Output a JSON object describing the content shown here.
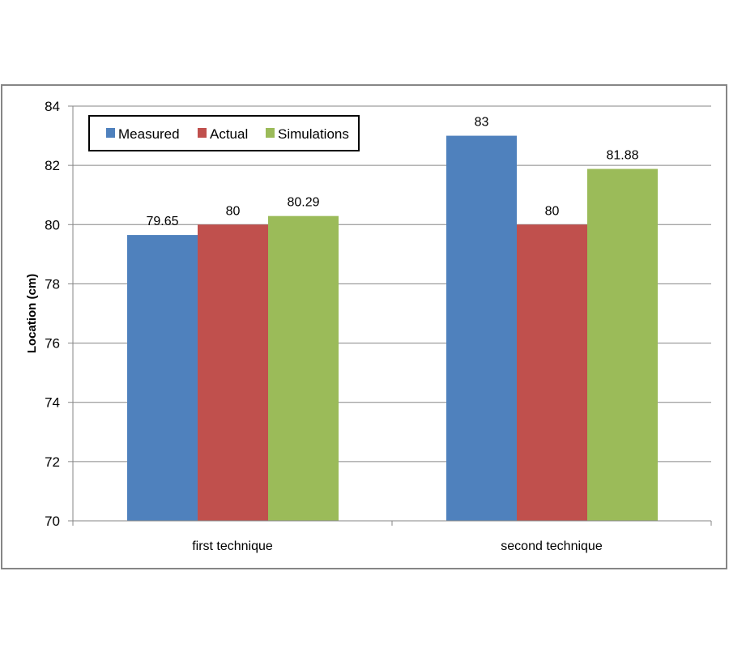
{
  "chart_data": {
    "type": "bar",
    "title": "",
    "xlabel": "",
    "ylabel": "Location (cm)",
    "ylim": [
      70,
      84
    ],
    "yticks": [
      70,
      72,
      74,
      76,
      78,
      80,
      82,
      84
    ],
    "grid": true,
    "legend_position": "top-left",
    "categories": [
      "first technique",
      "second technique"
    ],
    "series": [
      {
        "name": "Measured",
        "color": "#4F81BD",
        "values": [
          79.65,
          83
        ],
        "labels": [
          "79.65",
          "83"
        ]
      },
      {
        "name": "Actual",
        "color": "#C0504D",
        "values": [
          80,
          80
        ],
        "labels": [
          "80",
          "80"
        ]
      },
      {
        "name": "Simulations",
        "color": "#9BBB59",
        "values": [
          80.29,
          81.88
        ],
        "labels": [
          "80.29",
          "81.88"
        ]
      }
    ]
  }
}
